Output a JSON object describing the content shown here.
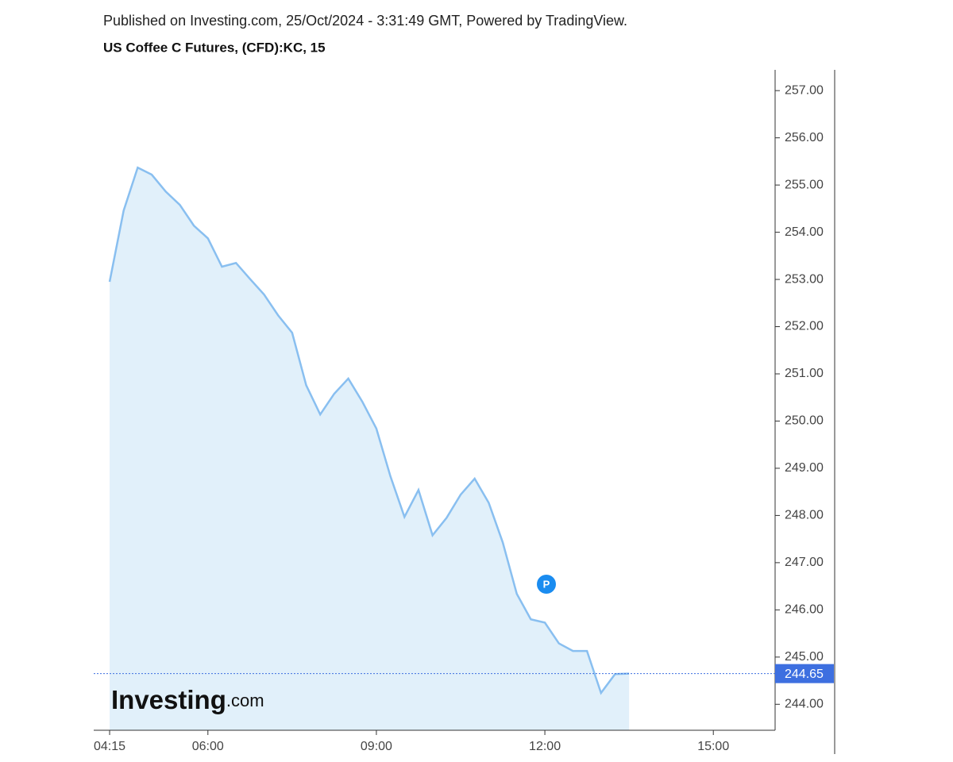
{
  "chart_data": {
    "type": "area",
    "published": "Published on Investing.com, 25/Oct/2024 - 3:31:49 GMT, Powered by TradingView.",
    "title": "US Coffee C Futures, (CFD):KC, 15",
    "watermark_main": "Investing",
    "watermark_suffix": ".com",
    "marker_label": "P",
    "last_value_label": "244.65",
    "color": "#89bff0",
    "fill": "#e1f0fa",
    "last_line_color": "#3d6fe0",
    "x": [
      255,
      270,
      285,
      300,
      315,
      330,
      345,
      360,
      375,
      390,
      405,
      420,
      435,
      450,
      465,
      480,
      495,
      510,
      525,
      540,
      555,
      570,
      585,
      600,
      615,
      630,
      645,
      660,
      675,
      690,
      705,
      720,
      735,
      750,
      765,
      780,
      795,
      810
    ],
    "series": [
      {
        "name": "KC",
        "values": [
          252.95,
          254.46,
          255.37,
          255.22,
          254.86,
          254.58,
          254.14,
          253.87,
          253.27,
          253.35,
          253.01,
          252.68,
          252.24,
          251.87,
          250.76,
          250.14,
          250.58,
          250.9,
          250.41,
          249.84,
          248.83,
          247.97,
          248.54,
          247.58,
          247.95,
          248.44,
          248.78,
          248.27,
          247.43,
          246.34,
          245.8,
          245.73,
          245.29,
          245.13,
          245.13,
          244.24,
          244.64,
          244.65
        ]
      }
    ],
    "xlim": [
      238,
      966
    ],
    "xticks": [
      {
        "value": 255,
        "label": "04:15"
      },
      {
        "value": 360,
        "label": "06:00"
      },
      {
        "value": 540,
        "label": "09:00"
      },
      {
        "value": 720,
        "label": "12:00"
      },
      {
        "value": 900,
        "label": "15:00"
      }
    ],
    "ylim": [
      243.45,
      257.44
    ],
    "yticks": [
      {
        "value": 244,
        "label": "244.00"
      },
      {
        "value": 245,
        "label": "245.00"
      },
      {
        "value": 246,
        "label": "246.00"
      },
      {
        "value": 247,
        "label": "247.00"
      },
      {
        "value": 248,
        "label": "248.00"
      },
      {
        "value": 249,
        "label": "249.00"
      },
      {
        "value": 250,
        "label": "250.00"
      },
      {
        "value": 251,
        "label": "251.00"
      },
      {
        "value": 252,
        "label": "252.00"
      },
      {
        "value": 253,
        "label": "253.00"
      },
      {
        "value": 254,
        "label": "254.00"
      },
      {
        "value": 255,
        "label": "255.00"
      },
      {
        "value": 256,
        "label": "256.00"
      },
      {
        "value": 257,
        "label": "257.00"
      }
    ],
    "grid": false
  }
}
